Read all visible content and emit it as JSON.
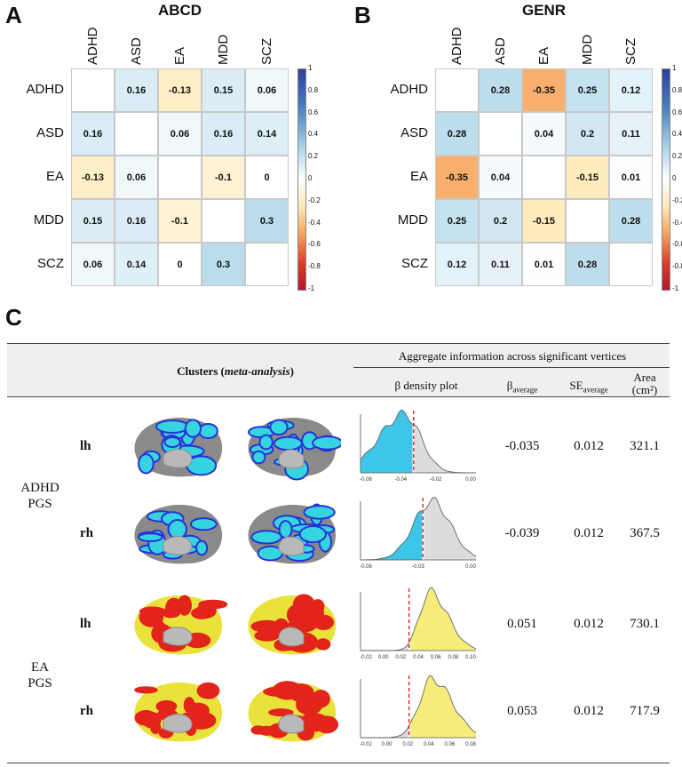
{
  "panels": {
    "a": "A",
    "b": "B",
    "c": "C"
  },
  "traits": [
    "ADHD",
    "ASD",
    "EA",
    "MDD",
    "SCZ"
  ],
  "colorbar": {
    "ticks": [
      "1",
      "0.8",
      "0.6",
      "0.4",
      "0.2",
      "0",
      "-0.2",
      "-0.4",
      "-0.6",
      "-0.8",
      "-1"
    ],
    "colors": {
      "negative": "#b2182b",
      "neutral": "#ffffff",
      "positive": "#2c3e9e"
    }
  },
  "matrices": [
    {
      "title": "ABCD",
      "values": [
        [
          null,
          0.16,
          -0.13,
          0.15,
          0.06
        ],
        [
          0.16,
          null,
          0.06,
          0.16,
          0.14
        ],
        [
          -0.13,
          0.06,
          null,
          -0.1,
          0
        ],
        [
          0.15,
          0.16,
          -0.1,
          null,
          0.3
        ],
        [
          0.06,
          0.14,
          0,
          0.3,
          null
        ]
      ]
    },
    {
      "title": "GENR",
      "values": [
        [
          null,
          0.28,
          -0.35,
          0.25,
          0.12
        ],
        [
          0.28,
          null,
          0.04,
          0.2,
          0.11
        ],
        [
          -0.35,
          0.04,
          null,
          -0.15,
          0.01
        ],
        [
          0.25,
          0.2,
          -0.15,
          null,
          0.28
        ],
        [
          0.12,
          0.11,
          0.01,
          0.28,
          null
        ]
      ]
    }
  ],
  "table": {
    "clusters_header": "Clusters (",
    "clusters_header_em": "meta-analysis",
    "clusters_header_end": ")",
    "aggregate_header": "Aggregate information across significant vertices",
    "col_density": "β density plot",
    "col_beta": "β",
    "col_beta_sub": "average",
    "col_se": "SE",
    "col_se_sub": "average",
    "col_area": "Area",
    "col_area_unit": "(cm²)",
    "groups": [
      {
        "line1": "ADHD",
        "line2": "PGS",
        "color": "#3ec6e8",
        "brain_color": "#2733d6",
        "brain_fill": "#35d4e0"
      },
      {
        "line1": "EA",
        "line2": "PGS",
        "color": "#f5ec7a",
        "brain_color": "#e2241a",
        "brain_fill": "#e8e23a"
      }
    ],
    "rows": [
      {
        "hemi": "lh",
        "beta": "-0.035",
        "se": "0.012",
        "area": "321.1",
        "ticks": [
          "-0.06",
          "-0.04",
          "-0.02",
          "0.00"
        ]
      },
      {
        "hemi": "rh",
        "beta": "-0.039",
        "se": "0.012",
        "area": "367.5",
        "ticks": [
          "-0.06",
          "-0.03",
          "0.00"
        ]
      },
      {
        "hemi": "lh",
        "beta": "0.051",
        "se": "0.012",
        "area": "730.1",
        "ticks": [
          "-0.02",
          "0.00",
          "0.02",
          "0.04",
          "0.06",
          "0.08",
          "0.10"
        ]
      },
      {
        "hemi": "rh",
        "beta": "0.053",
        "se": "0.012",
        "area": "717.9",
        "ticks": [
          "-0.02",
          "0.00",
          "0.02",
          "0.04",
          "0.06",
          "0.08"
        ]
      }
    ]
  }
}
